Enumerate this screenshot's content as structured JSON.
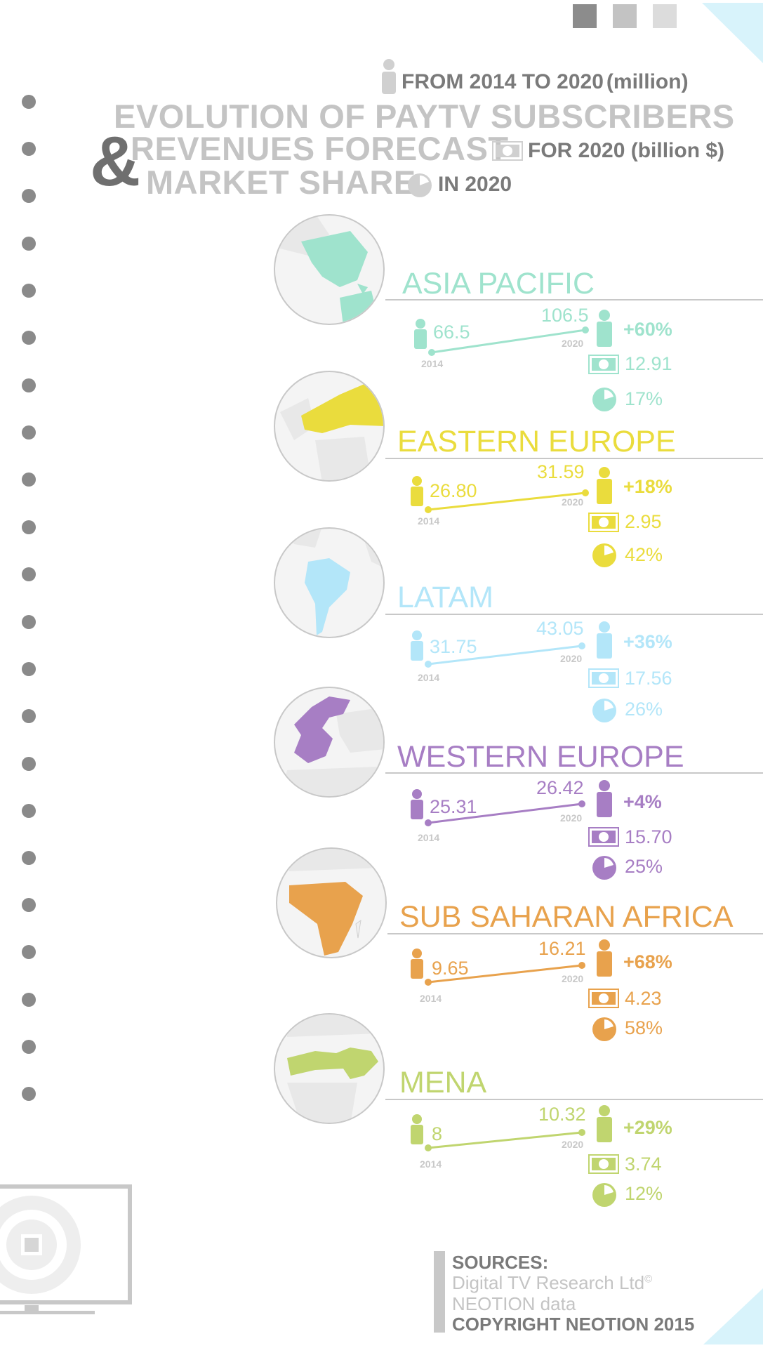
{
  "header": {
    "line1": "FROM 2014 TO 2020",
    "line1_unit": "(million)",
    "title1": "EVOLUTION OF PAYTV SUBSCRIBERS",
    "ampersand": "&",
    "title2": "REVENUES FORECAST",
    "title2_suffix": "FOR 2020 (billion $)",
    "title3": "MARKET SHARE",
    "title3_suffix": "IN 2020",
    "person_icon": "person-icon",
    "money_icon": "money-icon",
    "pie_icon": "pie-icon"
  },
  "colors": {
    "asia": "#9fe3cd",
    "eastern_europe": "#eadc3d",
    "latam": "#b3e6f9",
    "western_europe": "#a77ec4",
    "africa": "#e8a24d",
    "mena": "#c0d56f",
    "grey_dark": "#7a7a7a",
    "grey_light": "#c8c8c8",
    "corner_blue": "#d8f3fb"
  },
  "regions": [
    {
      "name": "ASIA PACIFIC",
      "v2014": "66.5",
      "v2020": "106.5",
      "growth": "+60%",
      "revenue": "12.91",
      "share": "17%",
      "share_value": 17,
      "y2014": "2014",
      "y2020": "2020"
    },
    {
      "name": "EASTERN EUROPE",
      "v2014": "26.80",
      "v2020": "31.59",
      "growth": "+18%",
      "revenue": "2.95",
      "share": "42%",
      "share_value": 42,
      "y2014": "2014",
      "y2020": "2020"
    },
    {
      "name": "LATAM",
      "v2014": "31.75",
      "v2020": "43.05",
      "growth": "+36%",
      "revenue": "17.56",
      "share": "26%",
      "share_value": 26,
      "y2014": "2014",
      "y2020": "2020"
    },
    {
      "name": "WESTERN EUROPE",
      "v2014": "25.31",
      "v2020": "26.42",
      "growth": "+4%",
      "revenue": "15.70",
      "share": "25%",
      "share_value": 25,
      "y2014": "2014",
      "y2020": "2020"
    },
    {
      "name": "SUB SAHARAN AFRICA",
      "v2014": "9.65",
      "v2020": "16.21",
      "growth": "+68%",
      "revenue": "4.23",
      "share": "58%",
      "share_value": 58,
      "y2014": "2014",
      "y2020": "2020"
    },
    {
      "name": "MENA",
      "v2014": "8",
      "v2020": "10.32",
      "growth": "+29%",
      "revenue": "3.74",
      "share": "12%",
      "share_value": 12,
      "y2014": "2014",
      "y2020": "2020"
    }
  ],
  "sources": {
    "label": "SOURCES:",
    "line1": "Digital TV Research Ltd",
    "line1_mark": "©",
    "line2": "NEOTION data",
    "copyright": "COPYRIGHT NEOTION 2015"
  }
}
